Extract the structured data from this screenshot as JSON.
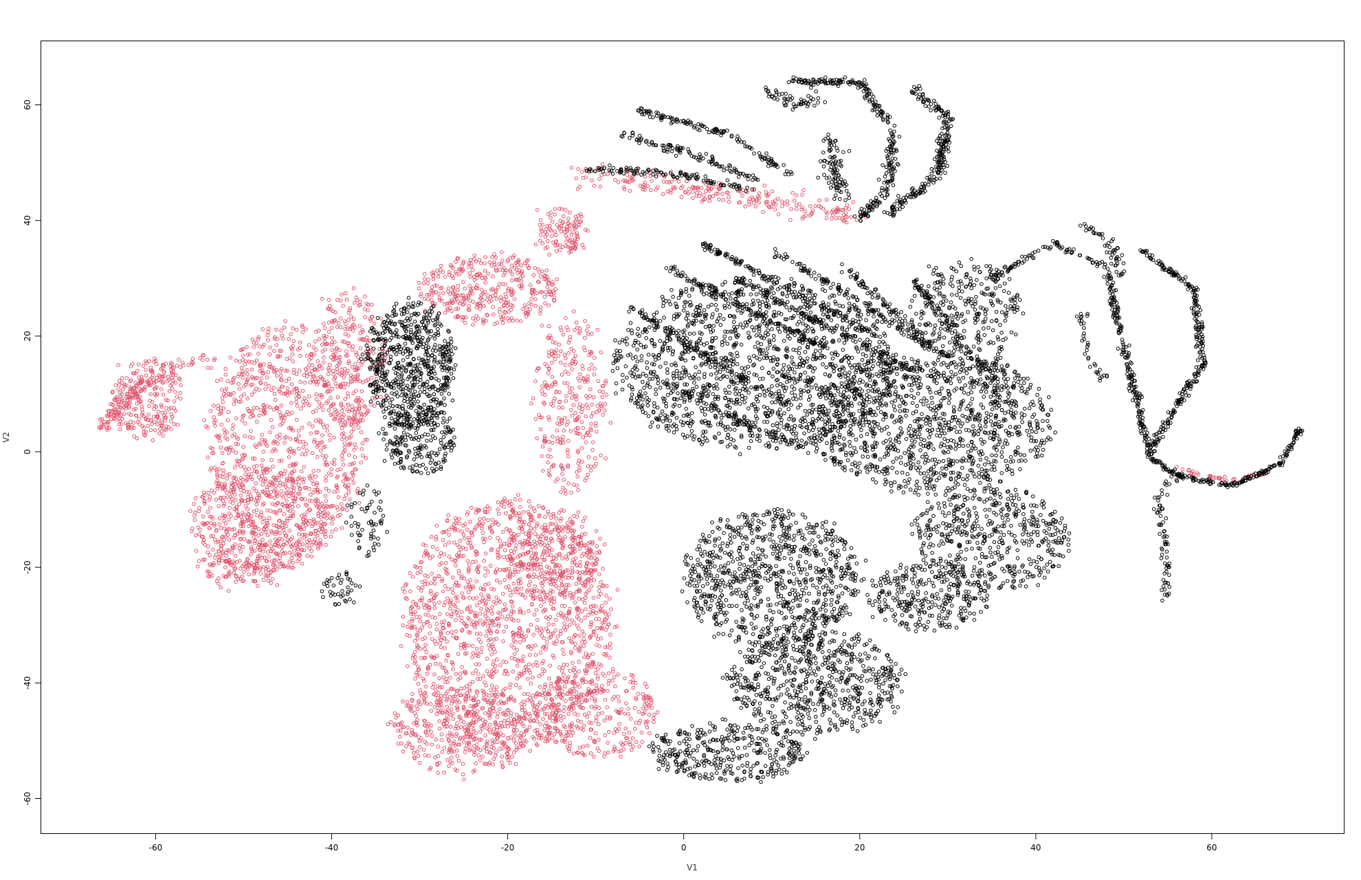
{
  "chart_data": {
    "type": "scatter",
    "title": "",
    "xlabel": "V1",
    "ylabel": "V2",
    "xlim": [
      -73,
      75
    ],
    "ylim": [
      -66,
      71
    ],
    "xticks": [
      -60,
      -40,
      -20,
      0,
      20,
      40,
      60
    ],
    "yticks": [
      -60,
      -40,
      -20,
      0,
      20,
      40,
      60
    ],
    "grid": false,
    "legend": "none",
    "marker": "open-circle",
    "colors": {
      "group1": "#DF536B",
      "group2": "#000000"
    },
    "series": [
      {
        "color": "#DF536B",
        "regions": [
          {
            "shape": "blob",
            "cx": -45,
            "cy": 2,
            "rx": 9,
            "ry": 20,
            "n": 900
          },
          {
            "shape": "blob",
            "cx": -48,
            "cy": -12,
            "rx": 8,
            "ry": 9,
            "n": 450
          },
          {
            "shape": "blob",
            "cx": -50,
            "cy": -20,
            "rx": 5,
            "ry": 4,
            "n": 120
          },
          {
            "shape": "blob",
            "cx": -38,
            "cy": 16,
            "rx": 4,
            "ry": 12,
            "n": 250
          },
          {
            "shape": "blob",
            "cx": -61,
            "cy": 9,
            "rx": 4,
            "ry": 7,
            "n": 220
          },
          {
            "shape": "curve",
            "points": [
              [
                -66,
                4
              ],
              [
                -63,
                10
              ],
              [
                -58,
                15
              ],
              [
                -54,
                16
              ]
            ],
            "spread": 1.2,
            "n": 140
          },
          {
            "shape": "blob",
            "cx": -20,
            "cy": -30,
            "rx": 12,
            "ry": 22,
            "n": 1500
          },
          {
            "shape": "blob",
            "cx": -25,
            "cy": -48,
            "rx": 8,
            "ry": 8,
            "n": 380
          },
          {
            "shape": "blob",
            "cx": -15,
            "cy": -18,
            "rx": 6,
            "ry": 8,
            "n": 250
          },
          {
            "shape": "blob",
            "cx": -10,
            "cy": -45,
            "rx": 7,
            "ry": 8,
            "n": 300
          },
          {
            "shape": "blob",
            "cx": -22,
            "cy": 28,
            "rx": 8,
            "ry": 6,
            "n": 380
          },
          {
            "shape": "blob",
            "cx": -13,
            "cy": 8,
            "rx": 4,
            "ry": 16,
            "n": 300
          },
          {
            "shape": "blob",
            "cx": -14,
            "cy": 38,
            "rx": 3,
            "ry": 4,
            "n": 110
          },
          {
            "shape": "curve",
            "points": [
              [
                -12,
                48
              ],
              [
                0,
                46
              ],
              [
                10,
                43
              ],
              [
                20,
                41
              ]
            ],
            "spread": 2,
            "n": 240
          },
          {
            "shape": "curve",
            "points": [
              [
                56,
                -3
              ],
              [
                62,
                -5
              ],
              [
                66,
                -4
              ]
            ],
            "spread": 0.4,
            "n": 40
          }
        ]
      },
      {
        "color": "#000000",
        "regions": [
          {
            "shape": "blob",
            "cx": -31,
            "cy": 15,
            "rx": 5,
            "ry": 11,
            "n": 650
          },
          {
            "shape": "blob",
            "cx": -30,
            "cy": 2,
            "rx": 4,
            "ry": 6,
            "n": 220
          },
          {
            "shape": "blob",
            "cx": -36,
            "cy": -12,
            "rx": 2,
            "ry": 6,
            "n": 60
          },
          {
            "shape": "blob",
            "cx": -39,
            "cy": -24,
            "rx": 2,
            "ry": 3,
            "n": 40
          },
          {
            "shape": "blob",
            "cx": 8,
            "cy": 15,
            "rx": 16,
            "ry": 15,
            "n": 1500
          },
          {
            "shape": "blob",
            "cx": 28,
            "cy": 5,
            "rx": 14,
            "ry": 12,
            "n": 1200
          },
          {
            "shape": "blob",
            "cx": 35,
            "cy": -15,
            "rx": 9,
            "ry": 9,
            "n": 500
          },
          {
            "shape": "blob",
            "cx": 10,
            "cy": -22,
            "rx": 10,
            "ry": 12,
            "n": 900
          },
          {
            "shape": "blob",
            "cx": 15,
            "cy": -40,
            "rx": 10,
            "ry": 9,
            "n": 650
          },
          {
            "shape": "blob",
            "cx": 5,
            "cy": -52,
            "rx": 9,
            "ry": 5,
            "n": 360
          },
          {
            "shape": "blob",
            "cx": 28,
            "cy": -25,
            "rx": 7,
            "ry": 6,
            "n": 300
          },
          {
            "shape": "blob",
            "cx": 32,
            "cy": 25,
            "rx": 6,
            "ry": 8,
            "n": 260
          },
          {
            "shape": "curve",
            "points": [
              [
                -5,
                59
              ],
              [
                5,
                55
              ],
              [
                12,
                48
              ]
            ],
            "spread": 0.6,
            "n": 130
          },
          {
            "shape": "curve",
            "points": [
              [
                -11,
                49
              ],
              [
                0,
                48
              ],
              [
                8,
                45
              ]
            ],
            "spread": 0.6,
            "n": 110
          },
          {
            "shape": "curve",
            "points": [
              [
                -7,
                55
              ],
              [
                2,
                51
              ],
              [
                8,
                47
              ]
            ],
            "spread": 0.8,
            "n": 100
          },
          {
            "shape": "curve",
            "points": [
              [
                12,
                64
              ],
              [
                20,
                64
              ],
              [
                24,
                55
              ],
              [
                23,
                45
              ],
              [
                20,
                40
              ]
            ],
            "spread": 0.7,
            "n": 260
          },
          {
            "shape": "curve",
            "points": [
              [
                26,
                63
              ],
              [
                30,
                58
              ],
              [
                29,
                48
              ],
              [
                23,
                41
              ]
            ],
            "spread": 0.7,
            "n": 230
          },
          {
            "shape": "curve",
            "points": [
              [
                17,
                55
              ],
              [
                17,
                48
              ],
              [
                18,
                44
              ]
            ],
            "spread": 1.4,
            "n": 90
          },
          {
            "shape": "curve",
            "points": [
              [
                10,
                62
              ],
              [
                13,
                60
              ],
              [
                15,
                61
              ]
            ],
            "spread": 1.0,
            "n": 50
          },
          {
            "shape": "curve",
            "points": [
              [
                35,
                30
              ],
              [
                42,
                36
              ],
              [
                48,
                32
              ],
              [
                50,
                18
              ],
              [
                52,
                6
              ],
              [
                53,
                -1
              ]
            ],
            "spread": 0.5,
            "n": 280
          },
          {
            "shape": "curve",
            "points": [
              [
                52,
                35
              ],
              [
                58,
                28
              ],
              [
                59,
                15
              ],
              [
                56,
                8
              ],
              [
                53,
                0
              ]
            ],
            "spread": 0.5,
            "n": 260
          },
          {
            "shape": "curve",
            "points": [
              [
                53,
                -1
              ],
              [
                56,
                -4
              ],
              [
                62,
                -6
              ],
              [
                68,
                -2
              ],
              [
                70,
                4
              ]
            ],
            "spread": 0.4,
            "n": 200
          },
          {
            "shape": "curve",
            "points": [
              [
                56,
                -4
              ],
              [
                54,
                -8
              ],
              [
                55,
                -20
              ],
              [
                55,
                -26
              ]
            ],
            "spread": 0.6,
            "n": 70
          },
          {
            "shape": "curve",
            "points": [
              [
                45,
                39
              ],
              [
                48,
                37
              ],
              [
                50,
                30
              ]
            ],
            "spread": 0.6,
            "n": 50
          },
          {
            "shape": "curve",
            "points": [
              [
                36,
                18
              ],
              [
                35,
                12
              ],
              [
                36,
                8
              ]
            ],
            "spread": 0.5,
            "n": 35
          },
          {
            "shape": "curve",
            "points": [
              [
                45,
                24
              ],
              [
                46,
                16
              ],
              [
                48,
                12
              ]
            ],
            "spread": 0.6,
            "n": 35
          },
          {
            "shape": "curve",
            "points": [
              [
                -2,
                32
              ],
              [
                8,
                24
              ],
              [
                16,
                18
              ]
            ],
            "spread": 0.6,
            "n": 140
          },
          {
            "shape": "curve",
            "points": [
              [
                2,
                36
              ],
              [
                12,
                28
              ],
              [
                22,
                20
              ]
            ],
            "spread": 0.6,
            "n": 140
          },
          {
            "shape": "curve",
            "points": [
              [
                6,
                30
              ],
              [
                16,
                22
              ],
              [
                26,
                14
              ]
            ],
            "spread": 0.6,
            "n": 140
          },
          {
            "shape": "curve",
            "points": [
              [
                10,
                35
              ],
              [
                20,
                26
              ],
              [
                28,
                18
              ]
            ],
            "spread": 0.6,
            "n": 130
          },
          {
            "shape": "curve",
            "points": [
              [
                18,
                32
              ],
              [
                24,
                24
              ],
              [
                30,
                16
              ]
            ],
            "spread": 0.6,
            "n": 110
          },
          {
            "shape": "curve",
            "points": [
              [
                26,
                30
              ],
              [
                30,
                22
              ],
              [
                34,
                14
              ]
            ],
            "spread": 0.6,
            "n": 100
          },
          {
            "shape": "curve",
            "points": [
              [
                -6,
                25
              ],
              [
                4,
                15
              ],
              [
                12,
                8
              ]
            ],
            "spread": 0.6,
            "n": 120
          },
          {
            "shape": "curve",
            "points": [
              [
                -2,
                12
              ],
              [
                8,
                4
              ],
              [
                18,
                -2
              ]
            ],
            "spread": 0.6,
            "n": 110
          }
        ]
      }
    ]
  }
}
